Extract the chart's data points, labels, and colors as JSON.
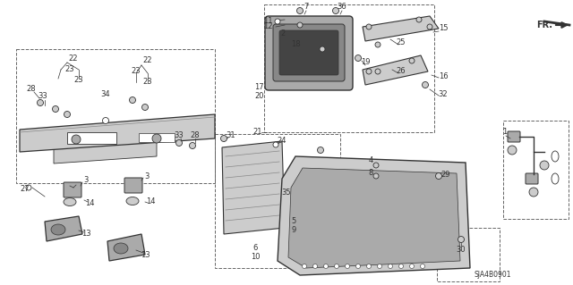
{
  "bg": "#ffffff",
  "lc": "#333333",
  "dashed_color": "#666666",
  "gray1": "#cccccc",
  "gray2": "#aaaaaa",
  "gray3": "#888888",
  "diagram_code": "SJA4B0901",
  "fr_text": "FR."
}
